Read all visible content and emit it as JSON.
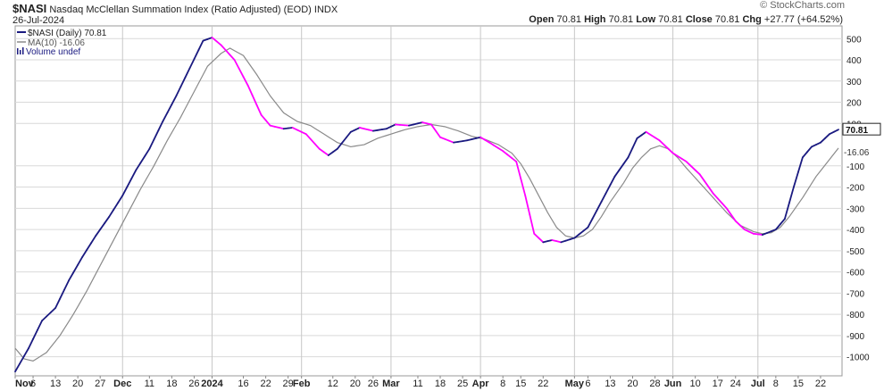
{
  "header": {
    "symbol": "$NASI",
    "title": "Nasdaq McClellan Summation Index (Ratio Adjusted) (EOD)",
    "exchange": "INDX",
    "date": "26-Jul-2024",
    "watermark": "© StockCharts.com",
    "ohlc": {
      "open_label": "Open",
      "open": "70.81",
      "high_label": "High",
      "high": "70.81",
      "low_label": "Low",
      "low": "70.81",
      "close_label": "Close",
      "close": "70.81",
      "chg_label": "Chg",
      "chg": "+27.77 (+64.52%)"
    }
  },
  "legend": {
    "main": "$NASI (Daily) 70.81",
    "ma": "MA(10) -16.06",
    "volume": "Volume undef"
  },
  "colors": {
    "up": "#1a1a80",
    "down": "#ff00ff",
    "ma": "#8a8a8a",
    "grid": "#d9d9d9",
    "vgrid": "#c8c8c8",
    "plot_border": "#9a9a9a"
  },
  "chart_data": {
    "type": "line",
    "y_ticks": [
      500,
      400,
      300,
      200,
      100,
      -100,
      -200,
      -300,
      -400,
      -500,
      -600,
      -700,
      -800,
      -900,
      -1000
    ],
    "ylim": [
      -1090,
      560
    ],
    "last_value_label": "70.81",
    "ma_value_label": "-16.06",
    "xlim": [
      0,
      184
    ],
    "x_ticks": [
      {
        "i": 0,
        "label": "Nov"
      },
      {
        "i": 4,
        "label": "6"
      },
      {
        "i": 9,
        "label": "13"
      },
      {
        "i": 14,
        "label": "20"
      },
      {
        "i": 19,
        "label": "27"
      },
      {
        "i": 24,
        "label": "Dec"
      },
      {
        "i": 30,
        "label": "11"
      },
      {
        "i": 35,
        "label": "18"
      },
      {
        "i": 40,
        "label": "26"
      },
      {
        "i": 44,
        "label": "2024"
      },
      {
        "i": 51,
        "label": "16"
      },
      {
        "i": 56,
        "label": "22"
      },
      {
        "i": 61,
        "label": "29"
      },
      {
        "i": 64,
        "label": "Feb"
      },
      {
        "i": 71,
        "label": "12"
      },
      {
        "i": 76,
        "label": "20"
      },
      {
        "i": 80,
        "label": "26"
      },
      {
        "i": 84,
        "label": "Mar"
      },
      {
        "i": 90,
        "label": "11"
      },
      {
        "i": 95,
        "label": "18"
      },
      {
        "i": 100,
        "label": "25"
      },
      {
        "i": 104,
        "label": "Apr"
      },
      {
        "i": 109,
        "label": "8"
      },
      {
        "i": 113,
        "label": "15"
      },
      {
        "i": 118,
        "label": "22"
      },
      {
        "i": 125,
        "label": "May"
      },
      {
        "i": 128,
        "label": "6"
      },
      {
        "i": 133,
        "label": "13"
      },
      {
        "i": 138,
        "label": "20"
      },
      {
        "i": 143,
        "label": "28"
      },
      {
        "i": 147,
        "label": "Jun"
      },
      {
        "i": 152,
        "label": "10"
      },
      {
        "i": 157,
        "label": "17"
      },
      {
        "i": 161,
        "label": "24"
      },
      {
        "i": 166,
        "label": "Jul"
      },
      {
        "i": 170,
        "label": "8"
      },
      {
        "i": 175,
        "label": "15"
      },
      {
        "i": 180,
        "label": "22"
      }
    ],
    "month_gridlines": [
      24,
      44,
      64,
      84,
      104,
      125,
      147,
      166
    ],
    "nasi_keypoints": [
      [
        0,
        -1070
      ],
      [
        3,
        -960
      ],
      [
        6,
        -830
      ],
      [
        9,
        -770
      ],
      [
        12,
        -640
      ],
      [
        15,
        -530
      ],
      [
        18,
        -430
      ],
      [
        21,
        -340
      ],
      [
        24,
        -240
      ],
      [
        27,
        -120
      ],
      [
        30,
        -20
      ],
      [
        33,
        110
      ],
      [
        36,
        230
      ],
      [
        39,
        360
      ],
      [
        42,
        490
      ],
      [
        44,
        505
      ],
      [
        46,
        470
      ],
      [
        49,
        400
      ],
      [
        52,
        280
      ],
      [
        55,
        140
      ],
      [
        57,
        90
      ],
      [
        60,
        75
      ],
      [
        62,
        80
      ],
      [
        65,
        50
      ],
      [
        68,
        -20
      ],
      [
        70,
        -50
      ],
      [
        72,
        -20
      ],
      [
        75,
        60
      ],
      [
        77,
        80
      ],
      [
        80,
        65
      ],
      [
        83,
        75
      ],
      [
        85,
        95
      ],
      [
        88,
        90
      ],
      [
        91,
        105
      ],
      [
        93,
        95
      ],
      [
        95,
        35
      ],
      [
        98,
        10
      ],
      [
        101,
        20
      ],
      [
        104,
        35
      ],
      [
        106,
        10
      ],
      [
        109,
        -30
      ],
      [
        112,
        -80
      ],
      [
        114,
        -240
      ],
      [
        116,
        -420
      ],
      [
        118,
        -460
      ],
      [
        120,
        -450
      ],
      [
        122,
        -460
      ],
      [
        125,
        -440
      ],
      [
        128,
        -390
      ],
      [
        131,
        -270
      ],
      [
        134,
        -150
      ],
      [
        137,
        -60
      ],
      [
        139,
        30
      ],
      [
        141,
        60
      ],
      [
        144,
        20
      ],
      [
        147,
        -40
      ],
      [
        150,
        -80
      ],
      [
        153,
        -140
      ],
      [
        156,
        -230
      ],
      [
        159,
        -300
      ],
      [
        161,
        -360
      ],
      [
        163,
        -400
      ],
      [
        165,
        -420
      ],
      [
        167,
        -425
      ],
      [
        170,
        -400
      ],
      [
        172,
        -350
      ],
      [
        174,
        -200
      ],
      [
        176,
        -60
      ],
      [
        178,
        -10
      ],
      [
        180,
        10
      ],
      [
        182,
        50
      ],
      [
        184,
        71
      ]
    ],
    "ma_keypoints": [
      [
        0,
        -960
      ],
      [
        2,
        -1010
      ],
      [
        4,
        -1020
      ],
      [
        7,
        -980
      ],
      [
        10,
        -900
      ],
      [
        13,
        -800
      ],
      [
        16,
        -690
      ],
      [
        19,
        -570
      ],
      [
        22,
        -450
      ],
      [
        25,
        -330
      ],
      [
        28,
        -210
      ],
      [
        31,
        -100
      ],
      [
        34,
        20
      ],
      [
        37,
        130
      ],
      [
        40,
        250
      ],
      [
        43,
        370
      ],
      [
        46,
        430
      ],
      [
        48,
        455
      ],
      [
        51,
        420
      ],
      [
        54,
        330
      ],
      [
        57,
        230
      ],
      [
        60,
        150
      ],
      [
        63,
        110
      ],
      [
        66,
        90
      ],
      [
        69,
        50
      ],
      [
        72,
        10
      ],
      [
        75,
        -10
      ],
      [
        78,
        0
      ],
      [
        81,
        30
      ],
      [
        84,
        50
      ],
      [
        87,
        70
      ],
      [
        90,
        85
      ],
      [
        93,
        95
      ],
      [
        96,
        85
      ],
      [
        99,
        65
      ],
      [
        102,
        40
      ],
      [
        105,
        25
      ],
      [
        108,
        0
      ],
      [
        111,
        -40
      ],
      [
        113,
        -90
      ],
      [
        115,
        -160
      ],
      [
        117,
        -240
      ],
      [
        119,
        -320
      ],
      [
        121,
        -390
      ],
      [
        123,
        -430
      ],
      [
        125,
        -440
      ],
      [
        127,
        -430
      ],
      [
        129,
        -400
      ],
      [
        131,
        -340
      ],
      [
        133,
        -270
      ],
      [
        136,
        -180
      ],
      [
        138,
        -110
      ],
      [
        140,
        -60
      ],
      [
        142,
        -20
      ],
      [
        144,
        -5
      ],
      [
        146,
        -20
      ],
      [
        148,
        -60
      ],
      [
        150,
        -110
      ],
      [
        153,
        -180
      ],
      [
        156,
        -250
      ],
      [
        159,
        -320
      ],
      [
        162,
        -380
      ],
      [
        165,
        -410
      ],
      [
        167,
        -420
      ],
      [
        169,
        -415
      ],
      [
        171,
        -390
      ],
      [
        173,
        -340
      ],
      [
        176,
        -250
      ],
      [
        179,
        -150
      ],
      [
        182,
        -70
      ],
      [
        184,
        -16
      ]
    ]
  }
}
